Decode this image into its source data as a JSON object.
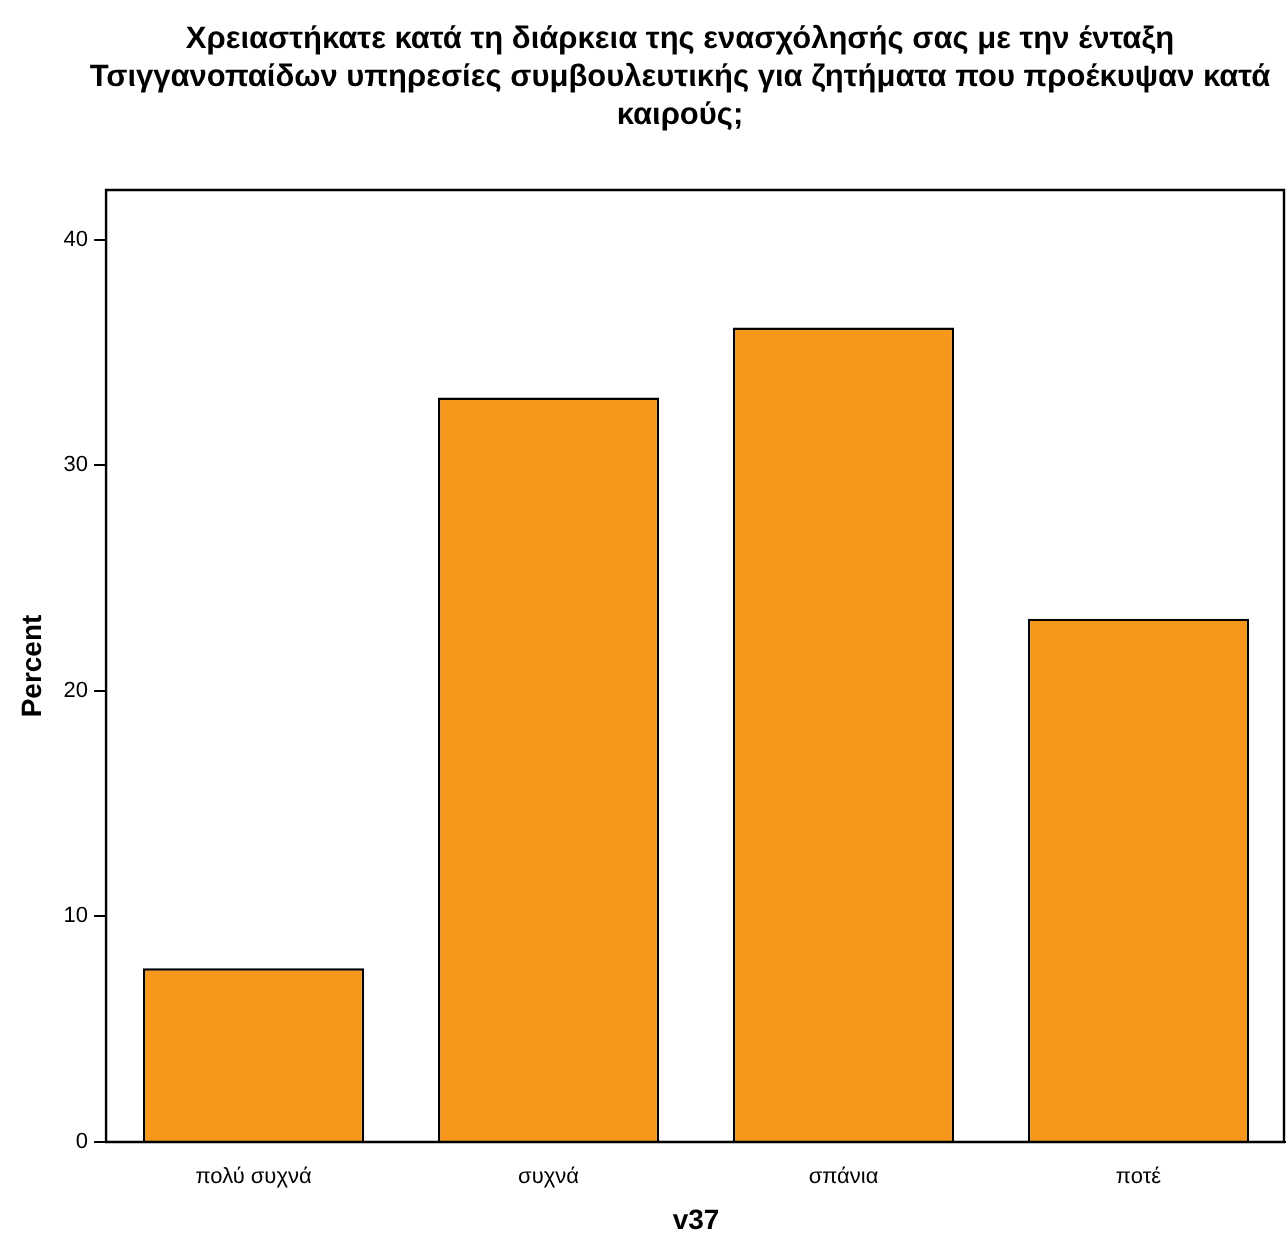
{
  "chart_data": {
    "type": "bar",
    "title": "Χρειαστήκατε κατά τη διάρκεια της ενασχόλησής σας με την ένταξη Τσιγγανοπαίδων υπηρεσίες συμβουλευτικής για ζητήματα που προέκυψαν κατά καιρούς;",
    "xlabel": "v37",
    "ylabel": "Percent",
    "categories": [
      "πολύ συχνά",
      "συχνά",
      "σπάνια",
      "ποτέ"
    ],
    "values": [
      7.7,
      33.0,
      36.1,
      23.2
    ],
    "color": "#f7981d",
    "ylim": [
      0,
      42.2
    ],
    "yticks": [
      0,
      10,
      20,
      30,
      40
    ],
    "grid": false
  }
}
